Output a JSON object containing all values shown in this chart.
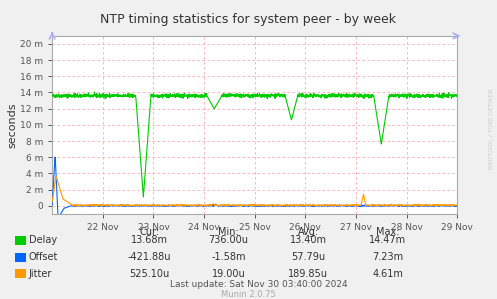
{
  "title": "NTP timing statistics for system peer - by week",
  "ylabel": "seconds",
  "background_color": "#f0f0f0",
  "plot_background": "#ffffff",
  "grid_color": "#ffaaaa",
  "border_color": "#aaaaaa",
  "ylim": [
    -0.001,
    0.021
  ],
  "ytick_vals": [
    0,
    0.002,
    0.004,
    0.006,
    0.008,
    0.01,
    0.012,
    0.014,
    0.016,
    0.018,
    0.02
  ],
  "ytick_labels": [
    "0",
    "2 m",
    "4 m",
    "6 m",
    "8 m",
    "10 m",
    "12 m",
    "14 m",
    "16 m",
    "18 m",
    "20 m"
  ],
  "xtick_labels": [
    "22 Nov",
    "23 Nov",
    "24 Nov",
    "25 Nov",
    "26 Nov",
    "27 Nov",
    "28 Nov",
    "29 Nov"
  ],
  "delay_color": "#00cc00",
  "offset_color": "#0066ff",
  "jitter_color": "#ff9900",
  "title_color": "#333333",
  "watermark_color": "#cccccc",
  "arrow_color": "#aaaaff",
  "stats_headers": [
    "Cur:",
    "Min:",
    "Avg:",
    "Max:"
  ],
  "stats_rows": [
    [
      "13.68m",
      "736.00u",
      "13.40m",
      "14.47m"
    ],
    [
      "-421.88u",
      "-1.58m",
      "57.79u",
      "7.23m"
    ],
    [
      "525.10u",
      "19.00u",
      "189.85u",
      "4.61m"
    ]
  ],
  "legend_labels": [
    "Delay",
    "Offset",
    "Jitter"
  ],
  "last_update": "Last update: Sat Nov 30 03:40:00 2024",
  "munin_version": "Munin 2.0.75",
  "rrdtool_label": "RRDTOOL / TOBI OETIKER"
}
